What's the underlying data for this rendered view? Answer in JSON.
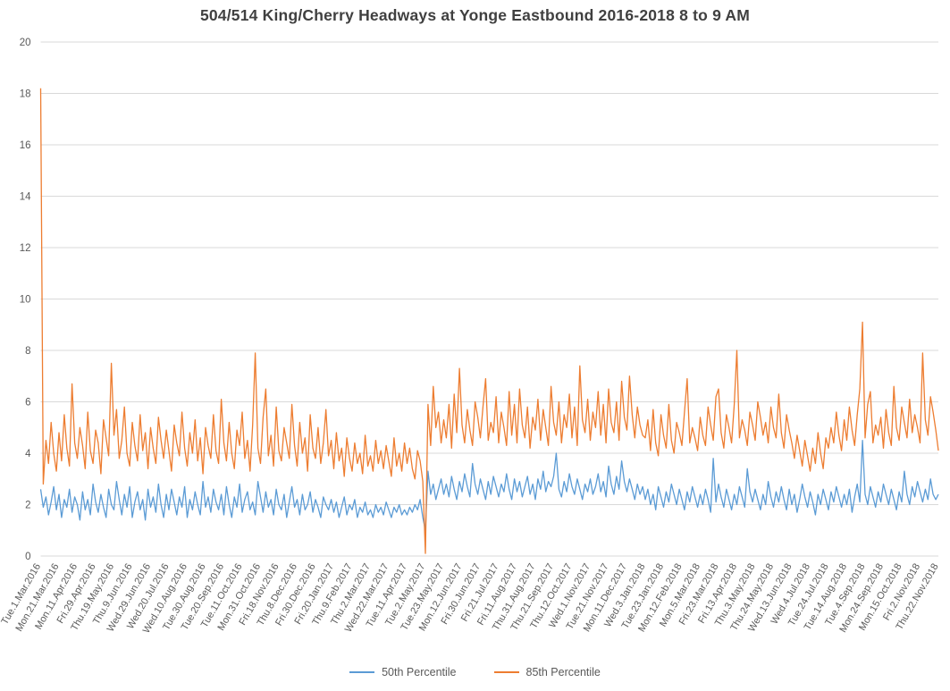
{
  "chart_data": {
    "type": "line",
    "title": "504/514 King/Cherry Headways at Yonge Eastbound 2016-2018 8 to 9 AM",
    "xlabel": "",
    "ylabel": "",
    "ylim": [
      0,
      20
    ],
    "ytick_step": 2,
    "grid": true,
    "legend_position": "bottom",
    "x_label_interval": 7,
    "x_labels": [
      "Tue.1.Mar.2016",
      "Mon.21.Mar.2016",
      "Mon.11.Apr.2016",
      "Fri.29.Apr.2016",
      "Thu.19.May.2016",
      "Thu.9.Jun.2016",
      "Wed.29.Jun.2016",
      "Wed.20.Jul.2016",
      "Wed.10.Aug.2016",
      "Tue.30.Aug.2016",
      "Tue.20.Sep.2016",
      "Tue.11.Oct.2016",
      "Mon.31.Oct.2016",
      "Fri.18.Nov.2016",
      "Thu.8.Dec.2016",
      "Fri.30.Dec.2016",
      "Fri.20.Jan.2017",
      "Thu.9.Feb.2017",
      "Thu.2.Mar.2017",
      "Wed.22.Mar.2017",
      "Tue.11.Apr.2017",
      "Tue.2.May.2017",
      "Tue.23.May.2017",
      "Mon.12.Jun.2017",
      "Fri.30.Jun.2017",
      "Fri.21.Jul.2017",
      "Fri.11.Aug.2017",
      "Thu.31.Aug.2017",
      "Thu.21.Sep.2017",
      "Thu.12.Oct.2017",
      "Wed.1.Nov.2017",
      "Tue.21.Nov.2017",
      "Mon.11.Dec.2017",
      "Wed.3.Jan.2018",
      "Tue.23.Jan.2018",
      "Mon.12.Feb.2018",
      "Mon.5.Mar.2018",
      "Fri.23.Mar.2018",
      "Fri.13.Apr.2018",
      "Thu.3.May.2018",
      "Thu.24.May.2018",
      "Wed.13.Jun.2018",
      "Wed.4.Jul.2018",
      "Tue.24.Jul.2018",
      "Tue.14.Aug.2018",
      "Tue.4.Sep.2018",
      "Mon.24.Sep.2018",
      "Mon.15.Oct.2018",
      "Fri.2.Nov.2018",
      "Thu.22.Nov.2018"
    ],
    "series": [
      {
        "name": "50th Percentile",
        "color": "#5B9BD5",
        "values": [
          2.6,
          1.9,
          2.3,
          1.6,
          2.1,
          2.7,
          1.8,
          2.4,
          1.5,
          2.2,
          1.9,
          2.6,
          1.7,
          2.3,
          2.0,
          1.4,
          2.5,
          1.8,
          2.2,
          1.6,
          2.8,
          2.1,
          1.7,
          2.4,
          1.9,
          1.5,
          2.6,
          2.0,
          1.8,
          2.9,
          2.2,
          1.6,
          2.4,
          1.9,
          2.7,
          1.5,
          2.1,
          2.5,
          1.8,
          2.2,
          1.4,
          2.6,
          1.9,
          2.3,
          1.7,
          2.8,
          2.0,
          1.5,
          2.4,
          1.8,
          2.6,
          2.1,
          1.6,
          2.3,
          1.9,
          2.7,
          1.5,
          2.2,
          1.8,
          2.5,
          2.0,
          1.6,
          2.9,
          1.9,
          2.3,
          1.7,
          2.6,
          2.1,
          1.8,
          2.4,
          1.6,
          2.7,
          2.0,
          1.5,
          2.3,
          1.9,
          2.8,
          1.7,
          2.2,
          2.5,
          1.8,
          2.1,
          1.6,
          2.9,
          2.3,
          1.7,
          2.5,
          1.9,
          2.2,
          1.6,
          2.6,
          2.0,
          1.8,
          2.4,
          1.5,
          2.1,
          2.7,
          1.9,
          2.2,
          1.6,
          2.4,
          1.8,
          2.0,
          2.5,
          1.7,
          2.2,
          1.9,
          1.5,
          2.3,
          2.0,
          1.8,
          2.2,
          1.7,
          2.1,
          1.5,
          1.9,
          2.3,
          1.6,
          2.0,
          1.8,
          2.2,
          1.5,
          1.9,
          1.7,
          2.1,
          1.6,
          1.8,
          1.5,
          2.0,
          1.7,
          1.9,
          1.6,
          2.1,
          1.8,
          1.5,
          1.9,
          1.7,
          2.0,
          1.6,
          1.8,
          1.6,
          1.9,
          1.7,
          2.0,
          1.8,
          2.2,
          1.5,
          1.0,
          3.3,
          2.4,
          2.8,
          2.2,
          2.6,
          3.0,
          2.4,
          2.8,
          2.3,
          3.1,
          2.6,
          2.2,
          2.9,
          2.5,
          3.2,
          2.7,
          2.3,
          3.6,
          2.8,
          2.4,
          3.0,
          2.6,
          2.2,
          2.9,
          2.4,
          3.1,
          2.7,
          2.3,
          2.8,
          2.5,
          3.2,
          2.6,
          2.2,
          3.0,
          2.5,
          2.9,
          2.3,
          2.7,
          3.1,
          2.4,
          2.8,
          2.2,
          3.0,
          2.6,
          3.3,
          2.5,
          2.9,
          2.7,
          3.1,
          4.0,
          2.6,
          2.3,
          2.9,
          2.5,
          3.2,
          2.7,
          2.4,
          3.0,
          2.6,
          2.2,
          2.8,
          2.5,
          3.0,
          2.4,
          2.7,
          3.2,
          2.5,
          2.9,
          2.3,
          3.5,
          2.8,
          2.4,
          3.1,
          2.6,
          3.7,
          2.9,
          2.5,
          3.0,
          2.6,
          2.2,
          2.8,
          2.4,
          2.7,
          2.2,
          2.6,
          2.0,
          2.4,
          1.8,
          2.7,
          2.3,
          1.9,
          2.5,
          2.1,
          2.8,
          2.4,
          2.0,
          2.6,
          2.2,
          1.8,
          2.5,
          2.1,
          2.7,
          2.3,
          1.9,
          2.4,
          2.0,
          2.6,
          2.2,
          1.7,
          3.8,
          2.1,
          2.8,
          2.3,
          1.9,
          2.6,
          2.2,
          1.8,
          2.4,
          2.0,
          2.7,
          2.3,
          1.9,
          3.4,
          2.5,
          2.1,
          2.6,
          2.2,
          1.8,
          2.4,
          2.0,
          2.9,
          2.3,
          1.9,
          2.5,
          2.1,
          2.7,
          2.2,
          1.8,
          2.6,
          2.0,
          2.4,
          1.7,
          2.2,
          2.8,
          2.3,
          1.9,
          2.5,
          2.1,
          1.6,
          2.4,
          2.0,
          2.6,
          2.2,
          1.8,
          2.5,
          2.1,
          2.7,
          2.3,
          1.9,
          2.4,
          2.0,
          2.6,
          1.7,
          2.3,
          2.8,
          2.1,
          4.5,
          2.4,
          2.0,
          2.7,
          2.3,
          1.9,
          2.5,
          2.1,
          2.8,
          2.4,
          2.0,
          2.6,
          2.2,
          1.8,
          2.5,
          2.1,
          3.3,
          2.4,
          2.0,
          2.7,
          2.3,
          2.9,
          2.5,
          2.1,
          2.6,
          2.2,
          3.0,
          2.4,
          2.2,
          2.4
        ]
      },
      {
        "name": "85th Percentile",
        "color": "#ED7D31",
        "values": [
          18.2,
          2.8,
          4.5,
          3.6,
          5.2,
          4.0,
          3.3,
          4.8,
          3.7,
          5.5,
          4.2,
          3.5,
          6.7,
          4.4,
          3.8,
          5.0,
          4.3,
          3.4,
          5.6,
          4.1,
          3.6,
          4.9,
          4.4,
          3.2,
          5.3,
          4.6,
          3.9,
          7.5,
          4.7,
          5.7,
          3.8,
          4.5,
          5.8,
          4.0,
          3.5,
          5.2,
          4.3,
          3.7,
          5.5,
          4.1,
          4.8,
          3.4,
          5.0,
          4.2,
          3.6,
          5.4,
          4.5,
          3.8,
          4.9,
          4.1,
          3.3,
          5.1,
          4.4,
          3.9,
          5.6,
          4.2,
          3.5,
          4.8,
          4.0,
          5.3,
          3.7,
          4.6,
          3.2,
          5.0,
          4.3,
          3.8,
          5.5,
          4.1,
          3.6,
          6.1,
          4.4,
          3.7,
          5.2,
          4.0,
          3.4,
          4.9,
          4.3,
          5.6,
          3.8,
          4.5,
          3.3,
          5.1,
          7.9,
          4.2,
          3.6,
          5.4,
          6.5,
          3.9,
          4.7,
          3.5,
          5.8,
          4.1,
          3.7,
          5.0,
          4.4,
          3.8,
          5.9,
          4.3,
          3.5,
          5.2,
          4.0,
          4.6,
          3.3,
          5.5,
          4.2,
          3.8,
          5.0,
          3.6,
          4.4,
          5.7,
          3.9,
          4.5,
          3.4,
          4.8,
          3.7,
          4.2,
          3.1,
          4.6,
          3.8,
          3.3,
          4.4,
          3.6,
          4.0,
          3.2,
          4.7,
          3.5,
          3.9,
          3.3,
          4.5,
          3.6,
          4.1,
          3.4,
          4.3,
          3.7,
          3.1,
          4.6,
          3.5,
          4.0,
          3.3,
          4.4,
          3.6,
          4.2,
          3.4,
          3.0,
          4.1,
          3.7,
          2.9,
          0.1,
          5.9,
          4.3,
          6.6,
          5.0,
          5.6,
          4.4,
          5.3,
          4.6,
          5.9,
          4.2,
          6.3,
          4.8,
          7.3,
          5.1,
          4.4,
          5.7,
          4.9,
          4.3,
          6.0,
          5.4,
          4.6,
          5.8,
          6.9,
          4.5,
          5.2,
          4.8,
          6.2,
          4.4,
          5.6,
          5.0,
          4.3,
          6.4,
          4.7,
          5.9,
          4.4,
          6.5,
          5.1,
          4.6,
          5.8,
          4.2,
          5.4,
          4.9,
          6.1,
          4.5,
          5.7,
          5.0,
          4.3,
          6.6,
          5.2,
          4.7,
          6.0,
          4.4,
          5.5,
          5.0,
          6.3,
          4.6,
          5.8,
          4.3,
          7.4,
          5.3,
          4.8,
          6.1,
          4.5,
          5.6,
          5.0,
          6.4,
          4.7,
          5.9,
          4.4,
          6.5,
          5.2,
          4.8,
          6.0,
          4.5,
          6.8,
          5.4,
          4.9,
          7.0,
          5.5,
          4.6,
          5.8,
          5.1,
          4.7,
          4.6,
          5.3,
          4.1,
          5.7,
          4.4,
          3.9,
          5.5,
          4.7,
          4.2,
          5.9,
          4.5,
          4.0,
          5.2,
          4.8,
          4.3,
          5.6,
          6.9,
          4.4,
          5.0,
          4.6,
          4.1,
          5.4,
          4.7,
          4.3,
          5.8,
          5.1,
          4.5,
          6.2,
          6.5,
          4.8,
          4.2,
          5.5,
          5.0,
          4.4,
          5.9,
          8.0,
          4.6,
          5.3,
          4.9,
          4.3,
          5.6,
          5.1,
          4.5,
          6.0,
          5.4,
          4.7,
          5.2,
          4.4,
          5.8,
          5.0,
          4.6,
          6.3,
          4.8,
          4.2,
          5.5,
          4.9,
          4.4,
          3.8,
          4.7,
          4.1,
          3.5,
          4.5,
          3.9,
          3.3,
          4.2,
          3.6,
          4.8,
          4.0,
          3.4,
          4.6,
          4.2,
          5.0,
          4.4,
          5.6,
          4.7,
          4.1,
          5.3,
          4.5,
          5.8,
          4.9,
          4.3,
          5.5,
          6.5,
          9.1,
          4.6,
          5.9,
          6.4,
          4.4,
          5.1,
          4.7,
          5.4,
          4.2,
          5.7,
          4.8,
          4.3,
          6.6,
          5.0,
          4.5,
          5.8,
          5.2,
          4.6,
          6.1,
          4.8,
          5.5,
          5.0,
          4.4,
          7.9,
          5.3,
          4.7,
          6.2,
          5.6,
          4.9,
          4.1
        ]
      }
    ],
    "colors": {
      "gridline": "#D9D9D9",
      "axis_text": "#595959",
      "title_text": "#404040",
      "background": "#FFFFFF"
    }
  }
}
